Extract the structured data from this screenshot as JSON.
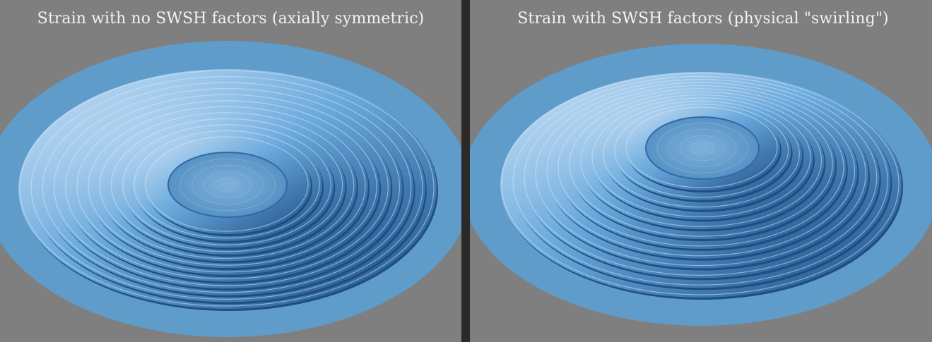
{
  "figure": {
    "left_panel": {
      "caption": "Strain with no SWSH factors (axially symmetric)"
    },
    "right_panel": {
      "caption": "Strain with SWSH factors (physical \"swirling\")"
    }
  },
  "colors": {
    "background": "#7f7f7f",
    "divider": "#2a2a2a",
    "surface_base": "#5f9cc9",
    "ridge_light": "#cfe4f7",
    "ridge_dark": "#1d4f86",
    "caption_text": "#f2f2f2"
  }
}
